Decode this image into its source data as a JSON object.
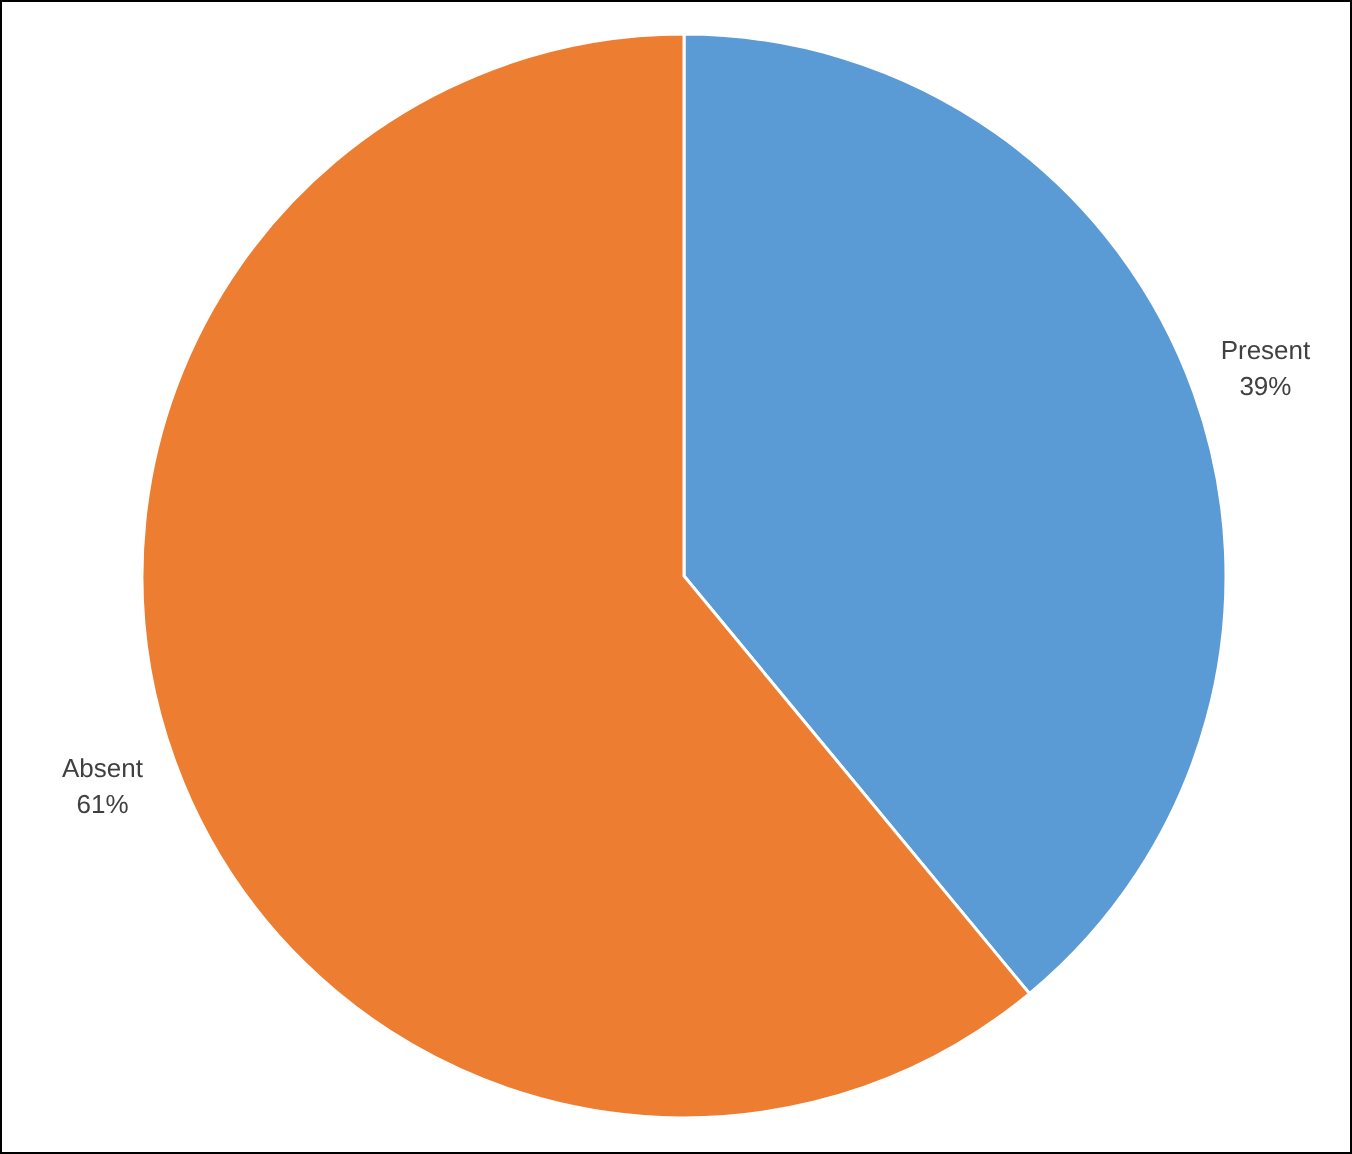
{
  "chart_data": {
    "type": "pie",
    "categories": [
      "Present",
      "Absent"
    ],
    "values": [
      39,
      61
    ],
    "colors": [
      "#5b9bd5",
      "#ed7d31"
    ],
    "value_labels": [
      "39%",
      "61%"
    ],
    "legend": false
  }
}
